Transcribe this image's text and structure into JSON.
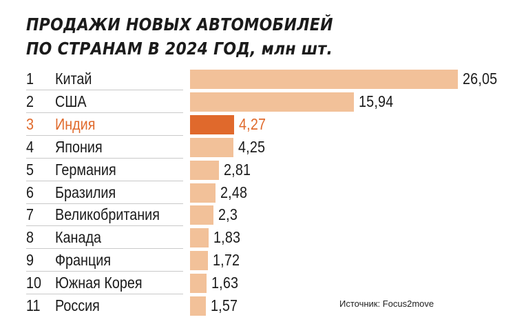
{
  "title": {
    "line1": "ПРОДАЖИ НОВЫХ АВТОМОБИЛЕЙ",
    "line2": "ПО СТРАНАМ В 2024 ГОД,",
    "unit": "млн шт."
  },
  "source": "Источник: Focus2move",
  "colors": {
    "bar": "#f2c199",
    "highlight": "#e0692c"
  },
  "chart_data": {
    "type": "bar",
    "orientation": "horizontal",
    "title": "ПРОДАЖИ НОВЫХ АВТОМОБИЛЕЙ ПО СТРАНАМ В 2024 ГОД, млн шт.",
    "ranks": [
      "1",
      "2",
      "3",
      "4",
      "5",
      "6",
      "7",
      "8",
      "9",
      "10",
      "11"
    ],
    "categories": [
      "Китай",
      "США",
      "Индия",
      "Япония",
      "Германия",
      "Бразилия",
      "Великобритания",
      "Канада",
      "Франция",
      "Южная Корея",
      "Россия"
    ],
    "values": [
      26.05,
      15.94,
      4.27,
      4.25,
      2.81,
      2.48,
      2.3,
      1.83,
      1.72,
      1.63,
      1.57
    ],
    "value_labels": [
      "26,05",
      "15,94",
      "4,27",
      "4,25",
      "2,81",
      "2,48",
      "2,3",
      "1,83",
      "1,72",
      "1,63",
      "1,57"
    ],
    "highlight_index": 2,
    "xlim": [
      0,
      26.05
    ],
    "grid": false,
    "legend": "none"
  }
}
